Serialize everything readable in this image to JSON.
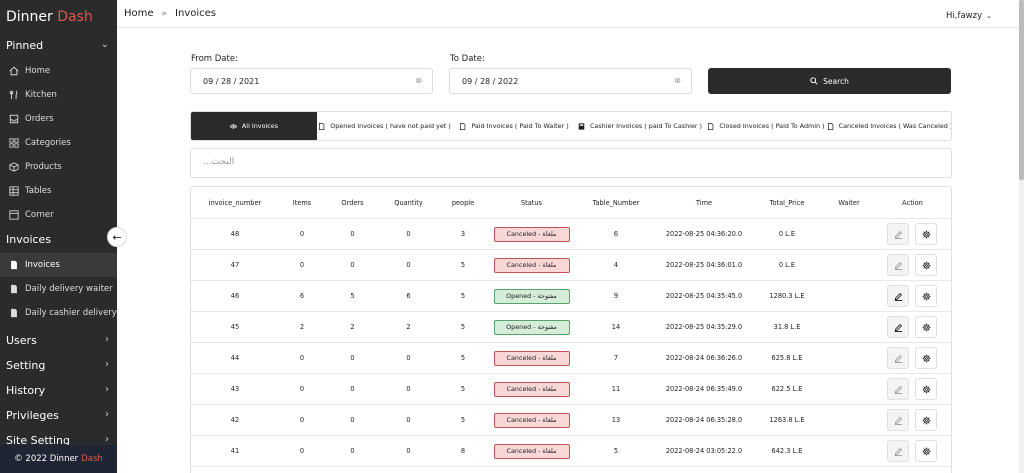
{
  "brand": {
    "name": "Dinner",
    "accent": "Dash"
  },
  "sidebar": {
    "pinned_label": "Pinned",
    "pinned_items": [
      {
        "label": "Home",
        "icon": "home-icon"
      },
      {
        "label": "Kitchen",
        "icon": "fork-knife-icon"
      },
      {
        "label": "Orders",
        "icon": "inbox-icon"
      },
      {
        "label": "Categories",
        "icon": "grid-icon"
      },
      {
        "label": "Products",
        "icon": "box-icon"
      },
      {
        "label": "Tables",
        "icon": "table-icon"
      },
      {
        "label": "Corner",
        "icon": "square-icon"
      }
    ],
    "invoices_label": "Invoices",
    "invoice_items": [
      {
        "label": "Invoices",
        "icon": "document-icon",
        "active": true
      },
      {
        "label": "Daily delivery waiter",
        "icon": "document-icon"
      },
      {
        "label": "Daily cashier delivery",
        "icon": "document-icon"
      }
    ],
    "sections": [
      "Users",
      "Setting",
      "History",
      "Privileges",
      "Site Setting"
    ],
    "footer": {
      "text": "© 2022 Dinner",
      "accent": "Dash"
    }
  },
  "header": {
    "breadcrumb_home": "Home",
    "breadcrumb_current": "Invoices",
    "user": "Hi,fawzy"
  },
  "filter": {
    "from_label": "From Date:",
    "from_value": "09 / 28 / 2021",
    "to_label": "To Date:",
    "to_value": "09 / 28 / 2022",
    "search_label": "Search"
  },
  "tabs": [
    {
      "label": "All Invoices",
      "icon": "eye-icon",
      "active": true
    },
    {
      "label": "Opened Invoices ( have not paid yet )",
      "icon": "document-icon"
    },
    {
      "label": "Paid Invoices ( Paid To Waiter )",
      "icon": "document-icon"
    },
    {
      "label": "Cashier Invoices ( paid To Cashier )",
      "icon": "cashier-icon"
    },
    {
      "label": "Closed Invoices ( Paid To Admin )",
      "icon": "document-icon"
    },
    {
      "label": "Canceled Invoices ( Was Canceled )",
      "icon": "document-icon"
    }
  ],
  "table_search": {
    "placeholder": "البحث..."
  },
  "table": {
    "columns": [
      "invoice_number",
      "Items",
      "Orders",
      "Quantity",
      "people",
      "Status",
      "Table_Number",
      "Time",
      "Total_Price",
      "Waiter",
      "Action"
    ],
    "rows": [
      {
        "invoice_number": "48",
        "items": "0",
        "orders": "0",
        "quantity": "0",
        "people": "3",
        "status": "Canceled - ملغاة",
        "status_type": "canceled",
        "table_number": "6",
        "time": "2022-08-25 04:36:20.0",
        "total_price": "0 L.E",
        "waiter": ""
      },
      {
        "invoice_number": "47",
        "items": "0",
        "orders": "0",
        "quantity": "0",
        "people": "5",
        "status": "Canceled - ملغاة",
        "status_type": "canceled",
        "table_number": "4",
        "time": "2022-08-25 04:36:01.0",
        "total_price": "0 L.E",
        "waiter": ""
      },
      {
        "invoice_number": "46",
        "items": "6",
        "orders": "5",
        "quantity": "6",
        "people": "5",
        "status": "Opened - مفتوحة",
        "status_type": "opened",
        "table_number": "9",
        "time": "2022-08-25 04:35:45.0",
        "total_price": "1280.3 L.E",
        "waiter": ""
      },
      {
        "invoice_number": "45",
        "items": "2",
        "orders": "2",
        "quantity": "2",
        "people": "5",
        "status": "Opened - مفتوحة",
        "status_type": "opened",
        "table_number": "14",
        "time": "2022-08-25 04:35:29.0",
        "total_price": "31.8 L.E",
        "waiter": ""
      },
      {
        "invoice_number": "44",
        "items": "0",
        "orders": "0",
        "quantity": "0",
        "people": "5",
        "status": "Canceled - ملغاة",
        "status_type": "canceled",
        "table_number": "7",
        "time": "2022-08-24 06:36:26.0",
        "total_price": "625.8 L.E",
        "waiter": ""
      },
      {
        "invoice_number": "43",
        "items": "0",
        "orders": "0",
        "quantity": "0",
        "people": "5",
        "status": "Canceled - ملغاة",
        "status_type": "canceled",
        "table_number": "11",
        "time": "2022-08-24 06:35:49.0",
        "total_price": "622.5 L.E",
        "waiter": ""
      },
      {
        "invoice_number": "42",
        "items": "0",
        "orders": "0",
        "quantity": "0",
        "people": "5",
        "status": "Canceled - ملغاة",
        "status_type": "canceled",
        "table_number": "13",
        "time": "2022-08-24 06:35:28.0",
        "total_price": "1263.8 L.E",
        "waiter": ""
      },
      {
        "invoice_number": "41",
        "items": "0",
        "orders": "0",
        "quantity": "0",
        "people": "8",
        "status": "Canceled - ملغاة",
        "status_type": "canceled",
        "table_number": "5",
        "time": "2022-08-24 03:05:22.0",
        "total_price": "642.3 L.E",
        "waiter": ""
      }
    ]
  },
  "colors": {
    "sidebar": "#2b2b2b",
    "accent": "#e0544e",
    "canceled_bg": "#f9d7d7",
    "opened_bg": "#d5ecd9"
  }
}
